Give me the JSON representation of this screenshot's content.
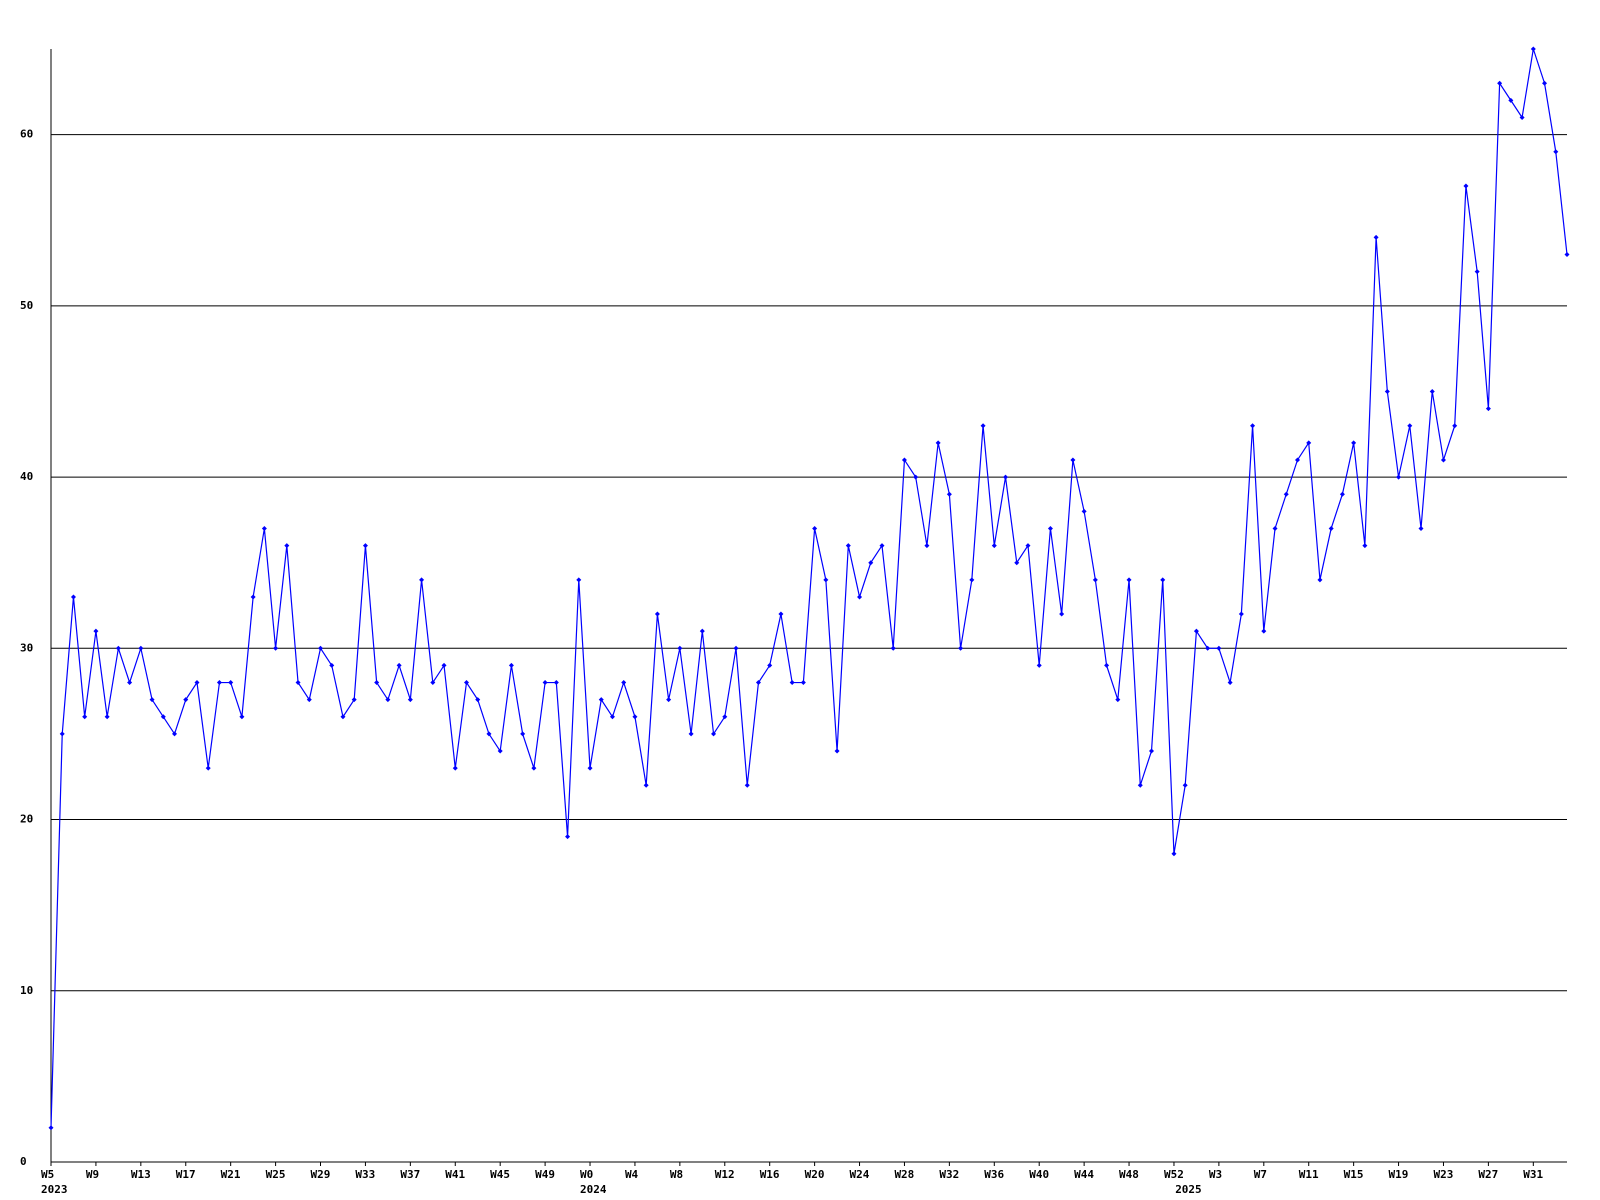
{
  "chart_data": {
    "type": "line",
    "categories": [
      "W5",
      null,
      null,
      null,
      "W9",
      null,
      null,
      null,
      "W13",
      null,
      null,
      null,
      "W17",
      null,
      null,
      null,
      "W21",
      null,
      null,
      null,
      "W25",
      null,
      null,
      null,
      "W29",
      null,
      null,
      null,
      "W33",
      null,
      null,
      null,
      "W37",
      null,
      null,
      null,
      "W41",
      null,
      null,
      null,
      "W45",
      null,
      null,
      null,
      "W49",
      null,
      null,
      null,
      "W0",
      null,
      null,
      null,
      "W4",
      null,
      null,
      null,
      "W8",
      null,
      null,
      null,
      "W12",
      null,
      null,
      null,
      "W16",
      null,
      null,
      null,
      "W20",
      null,
      null,
      null,
      "W24",
      null,
      null,
      null,
      "W28",
      null,
      null,
      null,
      "W32",
      null,
      null,
      null,
      "W36",
      null,
      null,
      null,
      "W40",
      null,
      null,
      null,
      "W44",
      null,
      null,
      null,
      "W48",
      null,
      null,
      null,
      "W52",
      null,
      null,
      null,
      "W3",
      null,
      null,
      null,
      "W7",
      null,
      null,
      null,
      "W11",
      null,
      null,
      null,
      "W15",
      null,
      null,
      null,
      "W19",
      null,
      null,
      null,
      "W23",
      null,
      null,
      null,
      "W27",
      null,
      null,
      null,
      "W31",
      null,
      null,
      null
    ],
    "category_groups": [
      "2023",
      null,
      null,
      null,
      null,
      null,
      null,
      null,
      null,
      null,
      null,
      null,
      null,
      null,
      null,
      null,
      null,
      null,
      null,
      null,
      null,
      null,
      null,
      null,
      null,
      null,
      null,
      null,
      null,
      null,
      null,
      null,
      null,
      null,
      null,
      null,
      null,
      null,
      null,
      null,
      null,
      null,
      null,
      null,
      null,
      null,
      null,
      null,
      "2024",
      null,
      null,
      null,
      null,
      null,
      null,
      null,
      null,
      null,
      null,
      null,
      null,
      null,
      null,
      null,
      null,
      null,
      null,
      null,
      null,
      null,
      null,
      null,
      null,
      null,
      null,
      null,
      null,
      null,
      null,
      null,
      null,
      null,
      null,
      null,
      null,
      null,
      null,
      null,
      null,
      null,
      null,
      null,
      null,
      null,
      null,
      null,
      null,
      null,
      null,
      null,
      null,
      "2025",
      null,
      null,
      null,
      null,
      null,
      null,
      null,
      null,
      null,
      null,
      null,
      null,
      null,
      null,
      null,
      null,
      null,
      null,
      null,
      null,
      null,
      null,
      null,
      null,
      null,
      null,
      null,
      null,
      null,
      null,
      null,
      null,
      null,
      null
    ],
    "series": [
      {
        "color": "#0000ff",
        "values": [
          2,
          25,
          33,
          26,
          31,
          26,
          30,
          28,
          30,
          27,
          26,
          25,
          27,
          28,
          23,
          28,
          28,
          26,
          33,
          37,
          30,
          36,
          28,
          27,
          30,
          29,
          26,
          27,
          36,
          28,
          27,
          29,
          27,
          34,
          28,
          29,
          23,
          28,
          27,
          25,
          24,
          29,
          25,
          23,
          28,
          28,
          19,
          34,
          23,
          27,
          26,
          28,
          26,
          22,
          32,
          27,
          30,
          25,
          31,
          25,
          26,
          30,
          22,
          28,
          29,
          32,
          28,
          28,
          37,
          34,
          24,
          36,
          33,
          35,
          36,
          30,
          41,
          40,
          36,
          42,
          39,
          30,
          34,
          43,
          36,
          40,
          35,
          36,
          29,
          37,
          32,
          41,
          38,
          34,
          29,
          27,
          34,
          22,
          24,
          34,
          18,
          22,
          31,
          30,
          30,
          28,
          32,
          43,
          31,
          37,
          39,
          41,
          42,
          34,
          37,
          39,
          42,
          36,
          54,
          45,
          40,
          43,
          37,
          45,
          41,
          43,
          57,
          52,
          44,
          63,
          62,
          61,
          65,
          63,
          59,
          53
        ]
      }
    ],
    "ylim": [
      0,
      65
    ],
    "yticks": [
      0,
      10,
      20,
      30,
      40,
      50,
      60
    ],
    "grid": true,
    "grid_color": "#000000"
  }
}
